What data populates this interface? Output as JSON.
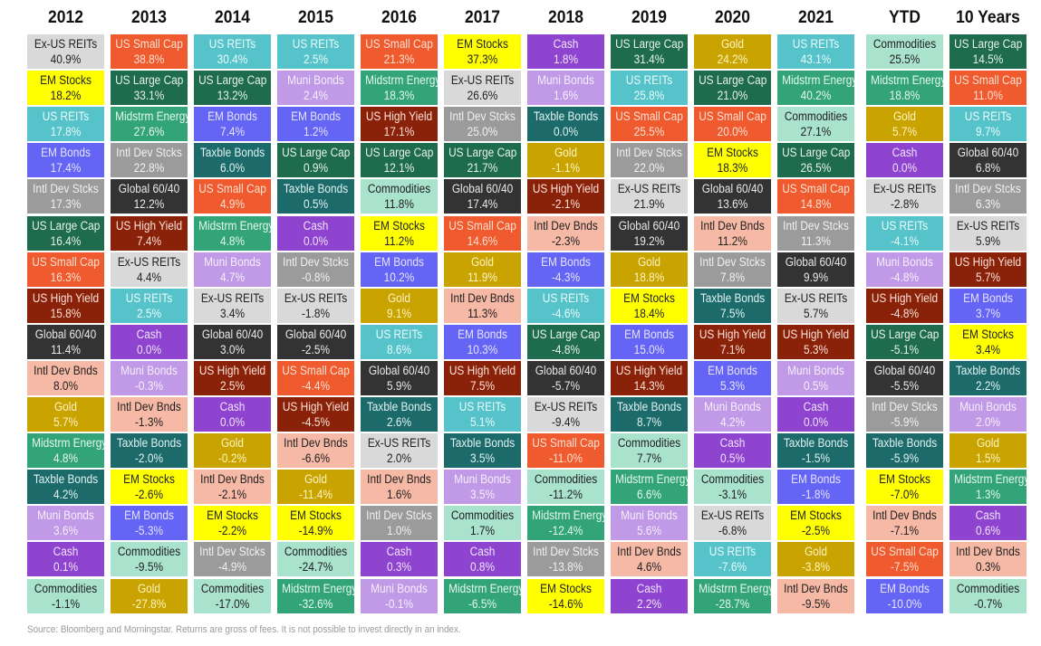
{
  "chart_data": {
    "type": "table",
    "title": "Asset class returns quilt",
    "columns": [
      "2012",
      "2013",
      "2014",
      "2015",
      "2016",
      "2017",
      "2018",
      "2019",
      "2020",
      "2021",
      "YTD",
      "10 Years"
    ],
    "asset_colors": {
      "US Large Cap": {
        "bg": "#1f6b4e",
        "fg": "#e6f2ea"
      },
      "US Small Cap": {
        "bg": "#ef5a2f",
        "fg": "#fde0d0"
      },
      "US REITs": {
        "bg": "#55c3c9",
        "fg": "#e9fbfb"
      },
      "Ex-US REITs": {
        "bg": "#d9d9d9",
        "fg": "#222222"
      },
      "EM Stocks": {
        "bg": "#ffff00",
        "fg": "#222222"
      },
      "EM Bonds": {
        "bg": "#6464f5",
        "fg": "#e4e4ff"
      },
      "Intl Dev Stcks": {
        "bg": "#9b9b9b",
        "fg": "#f0f0f0"
      },
      "Intl Dev Bnds": {
        "bg": "#f6b9a6",
        "fg": "#222222"
      },
      "Global 60/40": {
        "bg": "#333333",
        "fg": "#e8e8e8"
      },
      "US High Yield": {
        "bg": "#8a2109",
        "fg": "#fbe2d9"
      },
      "Gold": {
        "bg": "#c9a400",
        "fg": "#fff3c0"
      },
      "Midstrm Energy": {
        "bg": "#33a477",
        "fg": "#e4f7ee"
      },
      "Taxble Bonds": {
        "bg": "#1c6a6a",
        "fg": "#e1f2f2"
      },
      "Muni Bonds": {
        "bg": "#c09ae6",
        "fg": "#f6eefe"
      },
      "Cash": {
        "bg": "#8e44cf",
        "fg": "#f0e4fb"
      },
      "Commodities": {
        "bg": "#a9e2cd",
        "fg": "#222222"
      }
    },
    "series": [
      {
        "name": "2012",
        "cells": [
          [
            "Ex-US REITs",
            "40.9%"
          ],
          [
            "EM Stocks",
            "18.2%"
          ],
          [
            "US REITs",
            "17.8%"
          ],
          [
            "EM Bonds",
            "17.4%"
          ],
          [
            "Intl Dev Stcks",
            "17.3%"
          ],
          [
            "US Large Cap",
            "16.4%"
          ],
          [
            "US Small Cap",
            "16.3%"
          ],
          [
            "US High Yield",
            "15.8%"
          ],
          [
            "Global 60/40",
            "11.4%"
          ],
          [
            "Intl Dev Bnds",
            "8.0%"
          ],
          [
            "Gold",
            "5.7%"
          ],
          [
            "Midstrm Energy",
            "4.8%"
          ],
          [
            "Taxble Bonds",
            "4.2%"
          ],
          [
            "Muni Bonds",
            "3.6%"
          ],
          [
            "Cash",
            "0.1%"
          ],
          [
            "Commodities",
            "-1.1%"
          ]
        ]
      },
      {
        "name": "2013",
        "cells": [
          [
            "US Small Cap",
            "38.8%"
          ],
          [
            "US Large Cap",
            "33.1%"
          ],
          [
            "Midstrm Energy",
            "27.6%"
          ],
          [
            "Intl Dev Stcks",
            "22.8%"
          ],
          [
            "Global 60/40",
            "12.2%"
          ],
          [
            "US High Yield",
            "7.4%"
          ],
          [
            "Ex-US REITs",
            "4.4%"
          ],
          [
            "US REITs",
            "2.5%"
          ],
          [
            "Cash",
            "0.0%"
          ],
          [
            "Muni Bonds",
            "-0.3%"
          ],
          [
            "Intl Dev Bnds",
            "-1.3%"
          ],
          [
            "Taxble Bonds",
            "-2.0%"
          ],
          [
            "EM Stocks",
            "-2.6%"
          ],
          [
            "EM Bonds",
            "-5.3%"
          ],
          [
            "Commodities",
            "-9.5%"
          ],
          [
            "Gold",
            "-27.8%"
          ]
        ]
      },
      {
        "name": "2014",
        "cells": [
          [
            "US REITs",
            "30.4%"
          ],
          [
            "US Large Cap",
            "13.2%"
          ],
          [
            "EM Bonds",
            "7.4%"
          ],
          [
            "Taxble Bonds",
            "6.0%"
          ],
          [
            "US Small Cap",
            "4.9%"
          ],
          [
            "Midstrm Energy",
            "4.8%"
          ],
          [
            "Muni Bonds",
            "4.7%"
          ],
          [
            "Ex-US REITs",
            "3.4%"
          ],
          [
            "Global 60/40",
            "3.0%"
          ],
          [
            "US High Yield",
            "2.5%"
          ],
          [
            "Cash",
            "0.0%"
          ],
          [
            "Gold",
            "-0.2%"
          ],
          [
            "Intl Dev Bnds",
            "-2.1%"
          ],
          [
            "EM Stocks",
            "-2.2%"
          ],
          [
            "Intl Dev Stcks",
            "-4.9%"
          ],
          [
            "Commodities",
            "-17.0%"
          ]
        ]
      },
      {
        "name": "2015",
        "cells": [
          [
            "US REITs",
            "2.5%"
          ],
          [
            "Muni Bonds",
            "2.4%"
          ],
          [
            "EM Bonds",
            "1.2%"
          ],
          [
            "US Large Cap",
            "0.9%"
          ],
          [
            "Taxble Bonds",
            "0.5%"
          ],
          [
            "Cash",
            "0.0%"
          ],
          [
            "Intl Dev Stcks",
            "-0.8%"
          ],
          [
            "Ex-US REITs",
            "-1.8%"
          ],
          [
            "Global 60/40",
            "-2.5%"
          ],
          [
            "US Small Cap",
            "-4.4%"
          ],
          [
            "US High Yield",
            "-4.5%"
          ],
          [
            "Intl Dev Bnds",
            "-6.6%"
          ],
          [
            "Gold",
            "-11.4%"
          ],
          [
            "EM Stocks",
            "-14.9%"
          ],
          [
            "Commodities",
            "-24.7%"
          ],
          [
            "Midstrm Energy",
            "-32.6%"
          ]
        ]
      },
      {
        "name": "2016",
        "cells": [
          [
            "US Small Cap",
            "21.3%"
          ],
          [
            "Midstrm Energy",
            "18.3%"
          ],
          [
            "US High Yield",
            "17.1%"
          ],
          [
            "US Large Cap",
            "12.1%"
          ],
          [
            "Commodities",
            "11.8%"
          ],
          [
            "EM Stocks",
            "11.2%"
          ],
          [
            "EM Bonds",
            "10.2%"
          ],
          [
            "Gold",
            "9.1%"
          ],
          [
            "US REITs",
            "8.6%"
          ],
          [
            "Global 60/40",
            "5.9%"
          ],
          [
            "Taxble Bonds",
            "2.6%"
          ],
          [
            "Ex-US REITs",
            "2.0%"
          ],
          [
            "Intl Dev Bnds",
            "1.6%"
          ],
          [
            "Intl Dev Stcks",
            "1.0%"
          ],
          [
            "Cash",
            "0.3%"
          ],
          [
            "Muni Bonds",
            "-0.1%"
          ]
        ]
      },
      {
        "name": "2017",
        "cells": [
          [
            "EM Stocks",
            "37.3%"
          ],
          [
            "Ex-US REITs",
            "26.6%"
          ],
          [
            "Intl Dev Stcks",
            "25.0%"
          ],
          [
            "US Large Cap",
            "21.7%"
          ],
          [
            "Global 60/40",
            "17.4%"
          ],
          [
            "US Small Cap",
            "14.6%"
          ],
          [
            "Gold",
            "11.9%"
          ],
          [
            "Intl Dev Bnds",
            "11.3%"
          ],
          [
            "EM Bonds",
            "10.3%"
          ],
          [
            "US High Yield",
            "7.5%"
          ],
          [
            "US REITs",
            "5.1%"
          ],
          [
            "Taxble Bonds",
            "3.5%"
          ],
          [
            "Muni Bonds",
            "3.5%"
          ],
          [
            "Commodities",
            "1.7%"
          ],
          [
            "Cash",
            "0.8%"
          ],
          [
            "Midstrm Energy",
            "-6.5%"
          ]
        ]
      },
      {
        "name": "2018",
        "cells": [
          [
            "Cash",
            "1.8%"
          ],
          [
            "Muni Bonds",
            "1.6%"
          ],
          [
            "Taxble Bonds",
            "0.0%"
          ],
          [
            "Gold",
            "-1.1%"
          ],
          [
            "US High Yield",
            "-2.1%"
          ],
          [
            "Intl Dev Bnds",
            "-2.3%"
          ],
          [
            "EM Bonds",
            "-4.3%"
          ],
          [
            "US REITs",
            "-4.6%"
          ],
          [
            "US Large Cap",
            "-4.8%"
          ],
          [
            "Global 60/40",
            "-5.7%"
          ],
          [
            "Ex-US REITs",
            "-9.4%"
          ],
          [
            "US Small Cap",
            "-11.0%"
          ],
          [
            "Commodities",
            "-11.2%"
          ],
          [
            "Midstrm Energy",
            "-12.4%"
          ],
          [
            "Intl Dev Stcks",
            "-13.8%"
          ],
          [
            "EM Stocks",
            "-14.6%"
          ]
        ]
      },
      {
        "name": "2019",
        "cells": [
          [
            "US Large Cap",
            "31.4%"
          ],
          [
            "US REITs",
            "25.8%"
          ],
          [
            "US Small Cap",
            "25.5%"
          ],
          [
            "Intl Dev Stcks",
            "22.0%"
          ],
          [
            "Ex-US REITs",
            "21.9%"
          ],
          [
            "Global 60/40",
            "19.2%"
          ],
          [
            "Gold",
            "18.8%"
          ],
          [
            "EM Stocks",
            "18.4%"
          ],
          [
            "EM Bonds",
            "15.0%"
          ],
          [
            "US High Yield",
            "14.3%"
          ],
          [
            "Taxble Bonds",
            "8.7%"
          ],
          [
            "Commodities",
            "7.7%"
          ],
          [
            "Midstrm Energy",
            "6.6%"
          ],
          [
            "Muni Bonds",
            "5.6%"
          ],
          [
            "Intl Dev Bnds",
            "4.6%"
          ],
          [
            "Cash",
            "2.2%"
          ]
        ]
      },
      {
        "name": "2020",
        "cells": [
          [
            "Gold",
            "24.2%"
          ],
          [
            "US Large Cap",
            "21.0%"
          ],
          [
            "US Small Cap",
            "20.0%"
          ],
          [
            "EM Stocks",
            "18.3%"
          ],
          [
            "Global 60/40",
            "13.6%"
          ],
          [
            "Intl Dev Bnds",
            "11.2%"
          ],
          [
            "Intl Dev Stcks",
            "7.8%"
          ],
          [
            "Taxble Bonds",
            "7.5%"
          ],
          [
            "US High Yield",
            "7.1%"
          ],
          [
            "EM Bonds",
            "5.3%"
          ],
          [
            "Muni Bonds",
            "4.2%"
          ],
          [
            "Cash",
            "0.5%"
          ],
          [
            "Commodities",
            "-3.1%"
          ],
          [
            "Ex-US REITs",
            "-6.8%"
          ],
          [
            "US REITs",
            "-7.6%"
          ],
          [
            "Midstrm Energy",
            "-28.7%"
          ]
        ]
      },
      {
        "name": "2021",
        "cells": [
          [
            "US REITs",
            "43.1%"
          ],
          [
            "Midstrm Energy",
            "40.2%"
          ],
          [
            "Commodities",
            "27.1%"
          ],
          [
            "US Large Cap",
            "26.5%"
          ],
          [
            "US Small Cap",
            "14.8%"
          ],
          [
            "Intl Dev Stcks",
            "11.3%"
          ],
          [
            "Global 60/40",
            "9.9%"
          ],
          [
            "Ex-US REITs",
            "5.7%"
          ],
          [
            "US High Yield",
            "5.3%"
          ],
          [
            "Muni Bonds",
            "0.5%"
          ],
          [
            "Cash",
            "0.0%"
          ],
          [
            "Taxble Bonds",
            "-1.5%"
          ],
          [
            "EM Bonds",
            "-1.8%"
          ],
          [
            "EM Stocks",
            "-2.5%"
          ],
          [
            "Gold",
            "-3.8%"
          ],
          [
            "Intl Dev Bnds",
            "-9.5%"
          ]
        ]
      },
      {
        "name": "YTD",
        "cells": [
          [
            "Commodities",
            "25.5%"
          ],
          [
            "Midstrm Energy",
            "18.8%"
          ],
          [
            "Gold",
            "5.7%"
          ],
          [
            "Cash",
            "0.0%"
          ],
          [
            "Ex-US REITs",
            "-2.8%"
          ],
          [
            "US REITs",
            "-4.1%"
          ],
          [
            "Muni Bonds",
            "-4.8%"
          ],
          [
            "US High Yield",
            "-4.8%"
          ],
          [
            "US Large Cap",
            "-5.1%"
          ],
          [
            "Global 60/40",
            "-5.5%"
          ],
          [
            "Intl Dev Stcks",
            "-5.9%"
          ],
          [
            "Taxble Bonds",
            "-5.9%"
          ],
          [
            "EM Stocks",
            "-7.0%"
          ],
          [
            "Intl Dev Bnds",
            "-7.1%"
          ],
          [
            "US Small Cap",
            "-7.5%"
          ],
          [
            "EM Bonds",
            "-10.0%"
          ]
        ]
      },
      {
        "name": "10 Years",
        "cells": [
          [
            "US Large Cap",
            "14.5%"
          ],
          [
            "US Small Cap",
            "11.0%"
          ],
          [
            "US REITs",
            "9.7%"
          ],
          [
            "Global 60/40",
            "6.8%"
          ],
          [
            "Intl Dev Stcks",
            "6.3%"
          ],
          [
            "Ex-US REITs",
            "5.9%"
          ],
          [
            "US High Yield",
            "5.7%"
          ],
          [
            "EM Bonds",
            "3.7%"
          ],
          [
            "EM Stocks",
            "3.4%"
          ],
          [
            "Taxble Bonds",
            "2.2%"
          ],
          [
            "Muni Bonds",
            "2.0%"
          ],
          [
            "Gold",
            "1.5%"
          ],
          [
            "Midstrm Energy",
            "1.3%"
          ],
          [
            "Cash",
            "0.6%"
          ],
          [
            "Intl Dev Bnds",
            "0.3%"
          ],
          [
            "Commodities",
            "-0.7%"
          ]
        ]
      }
    ],
    "source": "Source: Bloomberg and Morningstar. Returns are gross of fees. It is not possible to invest directly in an index."
  }
}
